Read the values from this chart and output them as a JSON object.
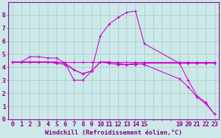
{
  "background_color": "#cce8e8",
  "grid_color": "#aacece",
  "line_color": "#cc00cc",
  "xlabel": "Windchill (Refroidissement éolien,°C)",
  "xlim": [
    -0.5,
    23.5
  ],
  "ylim": [
    0,
    9
  ],
  "xtick_labels": [
    "0",
    "1",
    "2",
    "3",
    "4",
    "5",
    "6",
    "7",
    "8",
    "9",
    "10",
    "11",
    "12",
    "13",
    "14",
    "15",
    "",
    "",
    "",
    "19",
    "20",
    "21",
    "22",
    "23"
  ],
  "xtick_positions": [
    0,
    1,
    2,
    3,
    4,
    5,
    6,
    7,
    8,
    9,
    10,
    11,
    12,
    13,
    14,
    15,
    16,
    17,
    18,
    19,
    20,
    21,
    22,
    23
  ],
  "yticks": [
    0,
    1,
    2,
    3,
    4,
    5,
    6,
    7,
    8
  ],
  "line1_x": [
    0,
    1,
    2,
    3,
    4,
    5,
    6,
    7,
    8,
    9,
    10,
    11,
    12,
    13,
    14,
    15,
    19,
    20,
    21,
    22,
    23
  ],
  "line1_y": [
    4.4,
    4.4,
    4.4,
    4.4,
    4.4,
    4.4,
    4.4,
    4.4,
    4.4,
    4.4,
    4.4,
    4.4,
    4.4,
    4.4,
    4.4,
    4.4,
    4.4,
    4.4,
    4.4,
    4.4,
    4.4
  ],
  "line2_x": [
    0,
    1,
    2,
    3,
    4,
    5,
    6,
    7,
    8,
    9,
    10,
    11,
    12,
    13,
    14,
    15,
    19,
    20,
    21,
    22,
    23
  ],
  "line2_y": [
    4.4,
    4.4,
    4.8,
    4.8,
    4.7,
    4.7,
    4.3,
    3.0,
    3.0,
    3.7,
    4.4,
    4.4,
    4.3,
    4.2,
    4.2,
    4.3,
    4.3,
    3.0,
    1.8,
    1.3,
    0.4
  ],
  "line3_x": [
    0,
    1,
    2,
    3,
    4,
    5,
    6,
    7,
    8,
    9,
    10,
    11,
    12,
    13,
    14,
    15,
    19,
    20,
    21,
    22,
    23
  ],
  "line3_y": [
    4.4,
    4.4,
    4.4,
    4.4,
    4.4,
    4.4,
    4.3,
    3.8,
    3.5,
    3.7,
    6.4,
    7.3,
    7.8,
    8.2,
    8.3,
    5.8,
    4.3,
    4.3,
    4.3,
    4.3,
    4.3
  ],
  "line4_x": [
    0,
    1,
    2,
    3,
    4,
    5,
    6,
    7,
    8,
    9,
    10,
    11,
    12,
    13,
    14,
    15,
    19,
    20,
    21,
    22,
    23
  ],
  "line4_y": [
    4.4,
    4.4,
    4.4,
    4.4,
    4.4,
    4.3,
    4.2,
    3.8,
    3.5,
    3.7,
    4.4,
    4.3,
    4.2,
    4.2,
    4.3,
    4.2,
    3.1,
    2.5,
    1.7,
    1.2,
    0.4
  ],
  "font_size": 6.5
}
